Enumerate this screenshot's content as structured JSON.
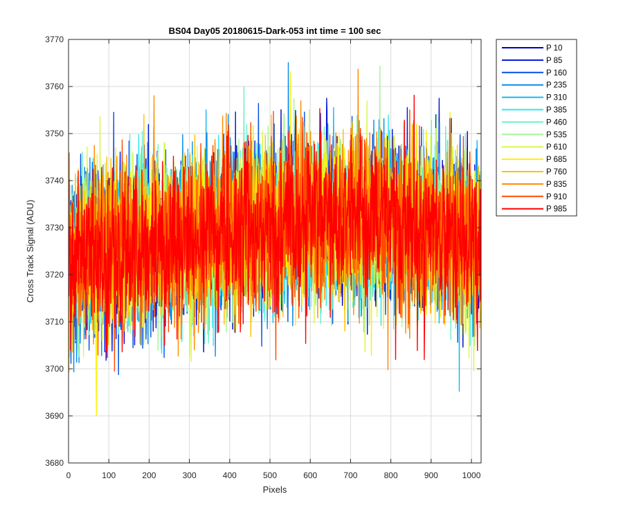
{
  "chart_data": {
    "type": "line",
    "title": "BS04 Day05 20180615-Dark-053 int time = 100 sec",
    "xlabel": "Pixels",
    "ylabel": "Cross Track Signal (ADU)",
    "xlim": [
      0,
      1024
    ],
    "ylim": [
      3680,
      3770
    ],
    "x_ticks": [
      0,
      100,
      200,
      300,
      400,
      500,
      600,
      700,
      800,
      900,
      1000
    ],
    "y_ticks": [
      3680,
      3690,
      3700,
      3710,
      3720,
      3730,
      3740,
      3750,
      3760,
      3770
    ],
    "grid": true,
    "legend_position": "outside-right-top",
    "x_count": 1024,
    "baseline": {
      "x": [
        0,
        100,
        200,
        300,
        400,
        500,
        600,
        700,
        800,
        900,
        1000,
        1024
      ],
      "y": [
        3724,
        3725,
        3726,
        3727,
        3729,
        3731,
        3732,
        3732,
        3731,
        3730,
        3727,
        3726
      ]
    },
    "series": [
      {
        "name": "P 10",
        "color": "#0000bf"
      },
      {
        "name": "P 85",
        "color": "#0016d9"
      },
      {
        "name": "P 160",
        "color": "#0050e0"
      },
      {
        "name": "P 235",
        "color": "#0a8ae8"
      },
      {
        "name": "P 310",
        "color": "#18b8f0"
      },
      {
        "name": "P 385",
        "color": "#2ee6ee"
      },
      {
        "name": "P 460",
        "color": "#6af0c8"
      },
      {
        "name": "P 535",
        "color": "#a6f49a"
      },
      {
        "name": "P 610",
        "color": "#d6f84c"
      },
      {
        "name": "P 685",
        "color": "#fff000"
      },
      {
        "name": "P 760",
        "color": "#ffc000"
      },
      {
        "name": "P 835",
        "color": "#ff8a00"
      },
      {
        "name": "P 910",
        "color": "#ff4a00"
      },
      {
        "name": "P 985",
        "color": "#ff0000"
      }
    ]
  }
}
